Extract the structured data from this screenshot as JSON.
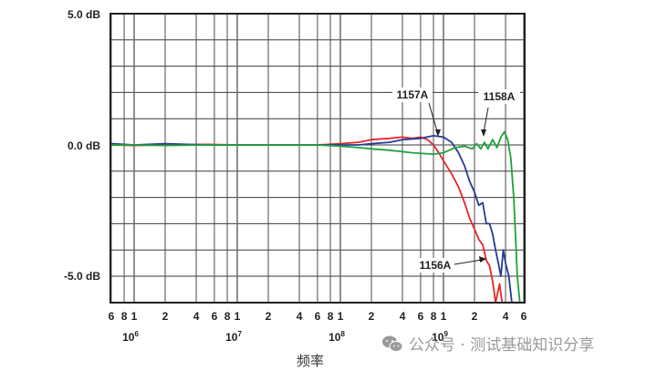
{
  "chart_data": {
    "type": "line",
    "title": "",
    "xlabel": "频率",
    "ylabel": "",
    "x_scale": "log",
    "xlim_hz": [
      600000,
      6000000000
    ],
    "ylim_db": [
      -6,
      5
    ],
    "grid": true,
    "y_tick_labels": [
      "5.0 dB",
      "0.0 dB",
      "-5.0 dB"
    ],
    "y_tick_values": [
      5,
      0,
      -5
    ],
    "x_minor_tick_labels": [
      "6",
      "8",
      "1",
      "2",
      "4",
      "6",
      "8",
      "1",
      "2",
      "4",
      "6",
      "8",
      "1",
      "2",
      "4",
      "6",
      "8",
      "1",
      "2",
      "4",
      "6"
    ],
    "x_decade_labels": [
      {
        "base": "10",
        "exp": "6"
      },
      {
        "base": "10",
        "exp": "7"
      },
      {
        "base": "10",
        "exp": "8"
      },
      {
        "base": "10",
        "exp": "9"
      }
    ],
    "series": [
      {
        "name": "1156A",
        "color": "#e8232a",
        "points": [
          [
            600000.0,
            0.0
          ],
          [
            1000000.0,
            -0.02
          ],
          [
            2000000.0,
            0.0
          ],
          [
            5000000.0,
            0.02
          ],
          [
            10000000.0,
            0.0
          ],
          [
            30000000.0,
            0.0
          ],
          [
            60000000.0,
            0.0
          ],
          [
            100000000.0,
            0.05
          ],
          [
            150000000.0,
            0.1
          ],
          [
            200000000.0,
            0.2
          ],
          [
            300000000.0,
            0.25
          ],
          [
            400000000.0,
            0.3
          ],
          [
            500000000.0,
            0.25
          ],
          [
            600000000.0,
            0.3
          ],
          [
            700000000.0,
            0.2
          ],
          [
            800000000.0,
            0.0
          ],
          [
            900000000.0,
            -0.3
          ],
          [
            1000000000.0,
            -0.6
          ],
          [
            1200000000.0,
            -1.1
          ],
          [
            1400000000.0,
            -1.6
          ],
          [
            1600000000.0,
            -2.2
          ],
          [
            1800000000.0,
            -2.8
          ],
          [
            2000000000.0,
            -3.2
          ],
          [
            2200000000.0,
            -3.6
          ],
          [
            2400000000.0,
            -3.8
          ],
          [
            2600000000.0,
            -4.4
          ],
          [
            2800000000.0,
            -4.6
          ],
          [
            3000000000.0,
            -5.2
          ],
          [
            3200000000.0,
            -6.0
          ],
          [
            3500000000.0,
            -5.3
          ],
          [
            3700000000.0,
            -6.0
          ],
          [
            4000000000.0,
            -6.0
          ],
          [
            5000000000.0,
            -6.0
          ]
        ]
      },
      {
        "name": "1157A",
        "color": "#253a96",
        "points": [
          [
            600000.0,
            0.05
          ],
          [
            1000000.0,
            0.0
          ],
          [
            2000000.0,
            0.05
          ],
          [
            5000000.0,
            0.0
          ],
          [
            10000000.0,
            0.0
          ],
          [
            30000000.0,
            0.0
          ],
          [
            60000000.0,
            0.0
          ],
          [
            100000000.0,
            0.0
          ],
          [
            150000000.0,
            0.0
          ],
          [
            200000000.0,
            0.05
          ],
          [
            300000000.0,
            0.1
          ],
          [
            400000000.0,
            0.2
          ],
          [
            600000000.0,
            0.25
          ],
          [
            800000000.0,
            0.35
          ],
          [
            1000000000.0,
            0.3
          ],
          [
            1200000000.0,
            0.1
          ],
          [
            1400000000.0,
            -0.3
          ],
          [
            1600000000.0,
            -0.8
          ],
          [
            1800000000.0,
            -1.4
          ],
          [
            2000000000.0,
            -1.8
          ],
          [
            2200000000.0,
            -2.3
          ],
          [
            2400000000.0,
            -2.2
          ],
          [
            2600000000.0,
            -3.0
          ],
          [
            2800000000.0,
            -3.0
          ],
          [
            3000000000.0,
            -3.4
          ],
          [
            3200000000.0,
            -4.0
          ],
          [
            3400000000.0,
            -4.5
          ],
          [
            3600000000.0,
            -5.0
          ],
          [
            3800000000.0,
            -4.0
          ],
          [
            4000000000.0,
            -4.5
          ],
          [
            4300000000.0,
            -5.0
          ],
          [
            4600000000.0,
            -6.0
          ],
          [
            5500000000.0,
            -6.0
          ]
        ]
      },
      {
        "name": "1158A",
        "color": "#1fa23a",
        "points": [
          [
            600000.0,
            0.0
          ],
          [
            1000000.0,
            0.0
          ],
          [
            2000000.0,
            -0.02
          ],
          [
            5000000.0,
            0.0
          ],
          [
            10000000.0,
            0.0
          ],
          [
            30000000.0,
            0.0
          ],
          [
            60000000.0,
            0.0
          ],
          [
            100000000.0,
            -0.05
          ],
          [
            150000000.0,
            -0.1
          ],
          [
            200000000.0,
            -0.15
          ],
          [
            300000000.0,
            -0.2
          ],
          [
            500000000.0,
            -0.3
          ],
          [
            800000000.0,
            -0.35
          ],
          [
            1000000000.0,
            -0.3
          ],
          [
            1300000000.0,
            -0.1
          ],
          [
            1600000000.0,
            -0.05
          ],
          [
            1900000000.0,
            -0.15
          ],
          [
            2100000000.0,
            0.05
          ],
          [
            2300000000.0,
            -0.15
          ],
          [
            2500000000.0,
            0.1
          ],
          [
            2700000000.0,
            -0.15
          ],
          [
            3000000000.0,
            0.2
          ],
          [
            3300000000.0,
            -0.1
          ],
          [
            3600000000.0,
            0.3
          ],
          [
            3900000000.0,
            0.5
          ],
          [
            4200000000.0,
            0.2
          ],
          [
            4500000000.0,
            -0.5
          ],
          [
            4800000000.0,
            -2.0
          ],
          [
            5000000000.0,
            -3.5
          ],
          [
            5200000000.0,
            -5.0
          ],
          [
            5500000000.0,
            -6.0
          ],
          [
            6000000000.0,
            -6.0
          ]
        ]
      }
    ],
    "annotations": [
      {
        "text": "1157A",
        "points_to": "1157A curve near 8e8 Hz, +0.3 dB"
      },
      {
        "text": "1158A",
        "points_to": "1158A curve near 2.3e9 Hz, 0 dB"
      },
      {
        "text": "1156A",
        "points_to": "1156A curve near 3e9 Hz, -4.5 dB"
      }
    ]
  },
  "watermark": {
    "text": "公众号 · 测试基础知识分享"
  }
}
